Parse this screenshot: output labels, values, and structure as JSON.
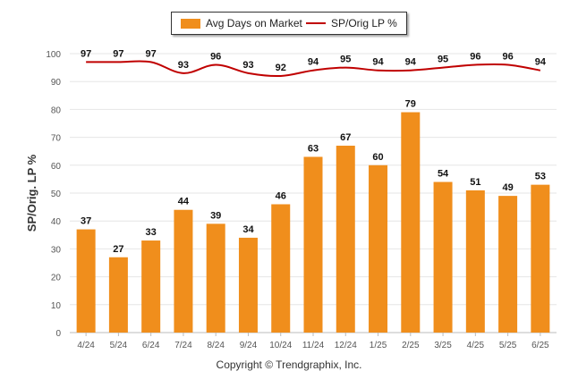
{
  "colors": {
    "bar": "#F08E1C",
    "line": "#C00000",
    "grid": "#E6E6E6",
    "axis_text": "#555555"
  },
  "legend": {
    "bar_label": "Avg Days on Market",
    "line_label": "SP/Orig LP %"
  },
  "copyright": "Copyright © Trendgraphix, Inc.",
  "chart_data": {
    "type": "bar",
    "categories": [
      "4/24",
      "5/24",
      "6/24",
      "7/24",
      "8/24",
      "9/24",
      "10/24",
      "11/24",
      "12/24",
      "1/25",
      "2/25",
      "3/25",
      "4/25",
      "5/25",
      "6/25"
    ],
    "series": [
      {
        "name": "Avg Days on Market",
        "type": "bar",
        "values": [
          37,
          27,
          33,
          44,
          39,
          34,
          46,
          63,
          67,
          60,
          79,
          54,
          51,
          49,
          53
        ]
      },
      {
        "name": "SP/Orig LP %",
        "type": "line",
        "values": [
          97,
          97,
          97,
          93,
          96,
          93,
          92,
          94,
          95,
          94,
          94,
          95,
          96,
          96,
          94
        ]
      }
    ],
    "ylabel": "SP/Orig. LP %",
    "ylim": [
      0,
      100
    ],
    "yticks": [
      0,
      10,
      20,
      30,
      40,
      50,
      60,
      70,
      80,
      90,
      100
    ],
    "grid": true,
    "legend_position": "top-center",
    "data_labels": true
  }
}
